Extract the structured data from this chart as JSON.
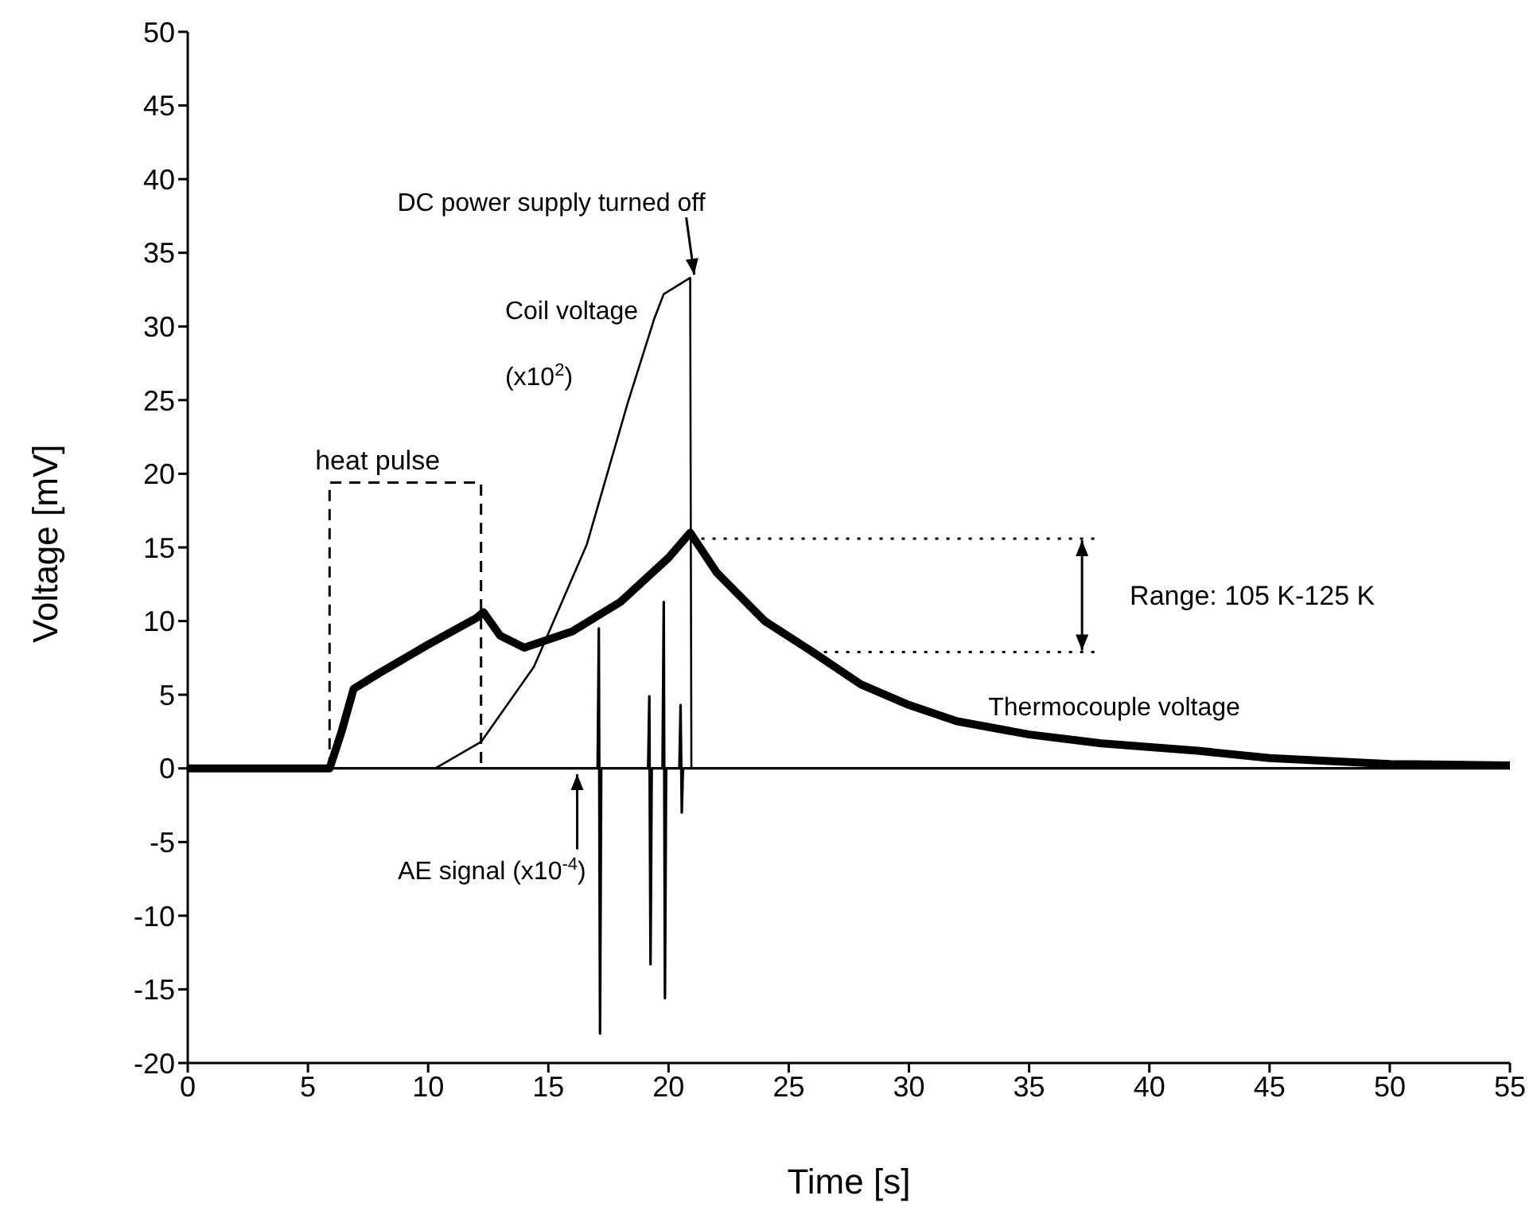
{
  "chart_data": {
    "type": "line",
    "xlabel": "Time [s]",
    "ylabel": "Voltage [mV]",
    "xlim": [
      0,
      55
    ],
    "xticks": [
      0,
      5,
      10,
      15,
      20,
      25,
      30,
      35,
      40,
      45,
      50,
      55
    ],
    "ylim": [
      -20,
      50
    ],
    "yticks": [
      -20,
      -15,
      -10,
      -5,
      0,
      5,
      10,
      15,
      20,
      25,
      30,
      35,
      40,
      45,
      50
    ],
    "grid": false,
    "marker": "none",
    "series": [
      {
        "name": "Thermocouple voltage",
        "color": "#000000",
        "x": [
          0,
          5.9,
          6.4,
          6.9,
          8,
          10,
          12,
          12.3,
          13,
          14,
          16,
          18,
          20,
          20.9,
          22,
          24,
          26,
          28,
          30,
          32,
          35,
          38,
          42,
          45,
          50,
          55
        ],
        "values": [
          0,
          0,
          2.5,
          5.4,
          6.5,
          8.4,
          10.2,
          10.6,
          9.0,
          8.2,
          9.3,
          11.3,
          14.3,
          16.0,
          13.3,
          10.0,
          7.9,
          5.7,
          4.3,
          3.2,
          2.3,
          1.7,
          1.2,
          0.7,
          0.3,
          0.2
        ]
      },
      {
        "name": "Coil voltage (x10$^{2}$)",
        "color": "#000000",
        "x": [
          0,
          10.3,
          12.2,
          14.4,
          16.6,
          18.3,
          19.4,
          19.8,
          20.9,
          20.95,
          55
        ],
        "values": [
          0,
          0,
          1.8,
          6.9,
          15.2,
          24.8,
          30.5,
          32.2,
          33.3,
          0,
          0
        ]
      },
      {
        "name": "AE signal (x10$^{-4}$)",
        "color": "#000000",
        "x": [
          0,
          17.05,
          17.1,
          17.15,
          17.2,
          19.15,
          19.2,
          19.25,
          19.3,
          19.75,
          19.8,
          19.85,
          19.9,
          20.45,
          20.5,
          20.55,
          20.6,
          55
        ],
        "values": [
          0,
          0,
          9.5,
          -18,
          0,
          0,
          4.9,
          -13.3,
          0,
          0,
          11.3,
          -15.6,
          0,
          0,
          4.3,
          -3,
          0,
          0
        ]
      },
      {
        "name": "heat pulse",
        "color": "#000000",
        "line_style": "dashed",
        "x": [
          5.9,
          5.9,
          12.2,
          12.2
        ],
        "values": [
          0,
          19.4,
          19.4,
          0
        ]
      }
    ],
    "ref_lines": [
      {
        "axis": "y",
        "value": 15.6,
        "line_style": "dotted",
        "color": "#000000"
      },
      {
        "axis": "y",
        "value": 7.9,
        "line_style": "dotted",
        "color": "#000000"
      }
    ],
    "annotations": [
      {
        "text": "DC power supply turned off",
        "x": 21,
        "y": 33.3
      },
      "Range: 105 K-125 K"
    ]
  }
}
